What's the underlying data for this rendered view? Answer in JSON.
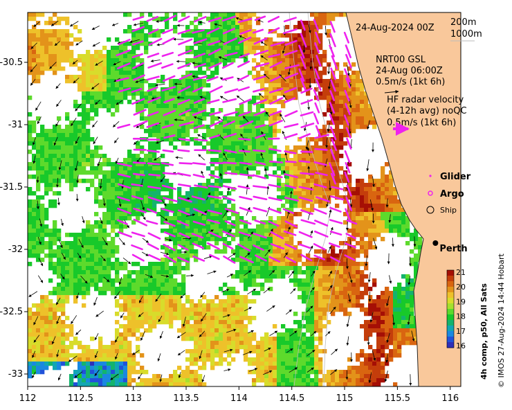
{
  "map": {
    "x_ticks": [
      "112",
      "112.5",
      "113",
      "113.5",
      "114",
      "114.5",
      "115",
      "115.5",
      "116"
    ],
    "y_ticks": [
      "-30.5",
      "-31",
      "-31.5",
      "-32",
      "-32.5",
      "-33"
    ],
    "lon_range": [
      112,
      116.1
    ],
    "lat_range": [
      -33.1,
      -30.1
    ],
    "land_color": "#f9c89b",
    "warm_color": "#a50f05",
    "cool_color": "#18c92a",
    "glider_color": "#ee22ee"
  },
  "annotations": {
    "date_label": "24-Aug-2024 00Z",
    "depth_1": "200m",
    "depth_2": "1000m",
    "gsl_title": "NRT00 GSL",
    "gsl_time": "24-Aug 06:00Z",
    "gsl_scale": "0.5m/s (1kt 6h)",
    "radar_title": "HF radar velocity",
    "radar_avg": "(4-12h avg) noQC",
    "radar_scale": "0.5m/s (1kt 6h)"
  },
  "legend": {
    "glider": "Glider",
    "argo": "Argo",
    "ship": "Ship"
  },
  "place": {
    "perth": "Perth",
    "perth_lon": 115.86,
    "perth_lat": -31.95
  },
  "colorbar": {
    "ticks": [
      "21",
      "20",
      "19",
      "18",
      "17",
      "16"
    ],
    "label": "4h comp, p50, All Sats",
    "colors": [
      "#a50f05",
      "#c43d0b",
      "#d96510",
      "#e3931a",
      "#eec12a",
      "#d8dc2b",
      "#a6e02e",
      "#5dda2c",
      "#18c92a",
      "#14b36d",
      "#12a6b3",
      "#1a88e0",
      "#2152d9",
      "#2e2fb8"
    ]
  },
  "credit": "© IMOS 27-Aug-2024 14:44 Hobart"
}
